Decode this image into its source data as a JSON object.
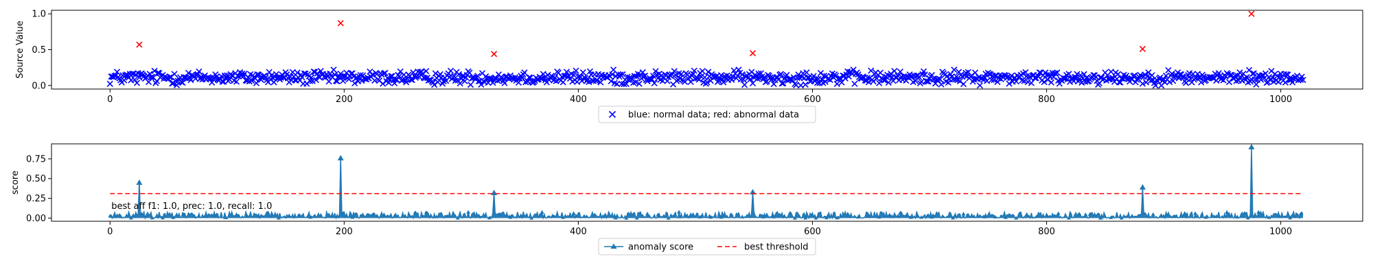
{
  "chart_data": [
    {
      "type": "scatter",
      "ylabel": "Source Value",
      "xlim": [
        -50,
        1070
      ],
      "ylim": [
        -0.05,
        1.05
      ],
      "xticks": [
        0,
        200,
        400,
        600,
        800,
        1000
      ],
      "yticks": [
        0.0,
        0.5,
        1.0
      ],
      "ytick_labels": [
        "0.0",
        "0.5",
        "1.0"
      ],
      "legend": {
        "placement": "bottom-center",
        "label": "blue: normal data; red: abnormal data"
      },
      "series": [
        {
          "color": "#0000ff",
          "marker": "x",
          "n_points": 1020,
          "x_range": [
            0,
            1019
          ],
          "y_typical": [
            0.03,
            0.2
          ],
          "y_mean": 0.11
        },
        {
          "color": "#ff0000",
          "marker": "x",
          "x": [
            25,
            197,
            328,
            549,
            882,
            975
          ],
          "y": [
            0.57,
            0.87,
            0.44,
            0.45,
            0.51,
            1.0
          ]
        }
      ]
    },
    {
      "type": "line",
      "ylabel": "score",
      "xlim": [
        -50,
        1070
      ],
      "ylim": [
        -0.04,
        0.94
      ],
      "xticks": [
        0,
        200,
        400,
        600,
        800,
        1000
      ],
      "yticks": [
        0.0,
        0.25,
        0.5,
        0.75
      ],
      "ytick_labels": [
        "0.00",
        "0.25",
        "0.50",
        "0.75"
      ],
      "annotation": "best aff f1: 1.0, prec: 1.0, recall: 1.0",
      "legend": {
        "placement": "bottom-center",
        "entries": [
          "anomaly score",
          "best threshold"
        ]
      },
      "series": [
        {
          "name": "anomaly score",
          "color": "#1f77b4",
          "marker": "triangle-up",
          "n_points": 1020,
          "baseline_range": [
            0.0,
            0.08
          ],
          "peaks": {
            "x": [
              25,
              197,
              328,
              549,
              882,
              975
            ],
            "y": [
              0.45,
              0.76,
              0.32,
              0.33,
              0.39,
              0.9
            ]
          }
        },
        {
          "name": "best threshold",
          "color": "#ff0000",
          "style": "dashed",
          "x": [
            0,
            1019
          ],
          "y": [
            0.31,
            0.31
          ]
        }
      ]
    }
  ]
}
